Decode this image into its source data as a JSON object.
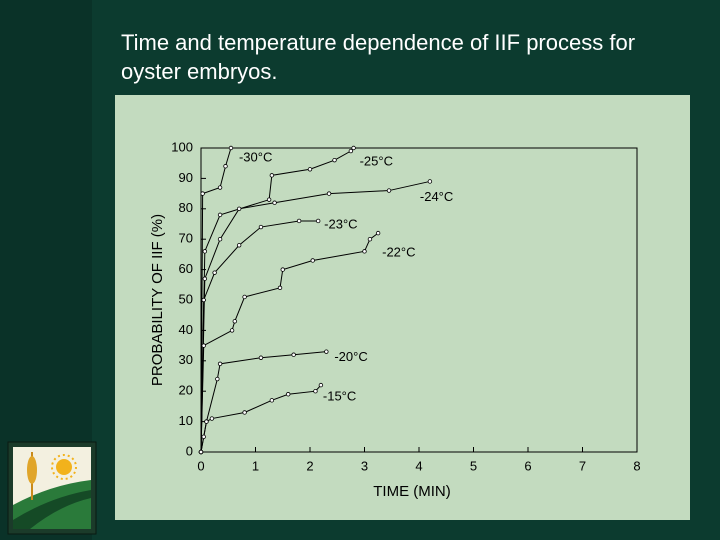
{
  "chart_data": {
    "type": "line",
    "title": "Time and temperature dependence of IIF process for oyster embryos.",
    "x_label": "TIME (MIN)",
    "y_label": "PROBABILITY OF IIF (%)",
    "xlim": [
      0,
      8
    ],
    "xticks": [
      0,
      1,
      2,
      3,
      4,
      5,
      6,
      7,
      8
    ],
    "ylim": [
      0,
      100
    ],
    "yticks": [
      0,
      10,
      20,
      30,
      40,
      50,
      60,
      70,
      80,
      90,
      100
    ],
    "color": "#000000",
    "series": [
      {
        "name": "-30°C",
        "x": [
          0,
          0.03,
          0.35,
          0.45,
          0.55
        ],
        "values": [
          0,
          85,
          87,
          94,
          100
        ]
      },
      {
        "name": "-25°C",
        "x": [
          0,
          0.07,
          0.35,
          1.25,
          1.3,
          2.0,
          2.45,
          2.75,
          2.8
        ],
        "values": [
          0,
          66,
          78,
          83,
          91,
          93,
          96,
          99,
          100
        ]
      },
      {
        "name": "-24°C",
        "x": [
          0,
          0.07,
          0.35,
          0.7,
          1.35,
          2.35,
          3.45,
          4.2
        ],
        "values": [
          0,
          57,
          70,
          80,
          82,
          85,
          86,
          89
        ]
      },
      {
        "name": "-23°C",
        "x": [
          0,
          0.05,
          0.25,
          0.7,
          1.1,
          1.8,
          2.15
        ],
        "values": [
          0,
          50,
          59,
          68,
          74,
          76,
          76
        ]
      },
      {
        "name": "-22°C",
        "x": [
          0,
          0.05,
          0.57,
          0.62,
          0.8,
          1.45,
          1.5,
          2.05,
          3.0,
          3.1,
          3.25
        ],
        "values": [
          0,
          35,
          40,
          43,
          51,
          54,
          60,
          63,
          66,
          70,
          72
        ]
      },
      {
        "name": "-20°C",
        "x": [
          0,
          0.1,
          0.3,
          0.35,
          1.1,
          1.7,
          2.3
        ],
        "values": [
          0,
          10,
          24,
          29,
          31,
          32,
          33
        ]
      },
      {
        "name": "-15°C",
        "x": [
          0,
          0.05,
          0.1,
          0.2,
          0.8,
          1.3,
          1.6,
          2.1,
          2.2
        ],
        "values": [
          0,
          5,
          10,
          11,
          13,
          17,
          19,
          20,
          22
        ]
      }
    ]
  }
}
